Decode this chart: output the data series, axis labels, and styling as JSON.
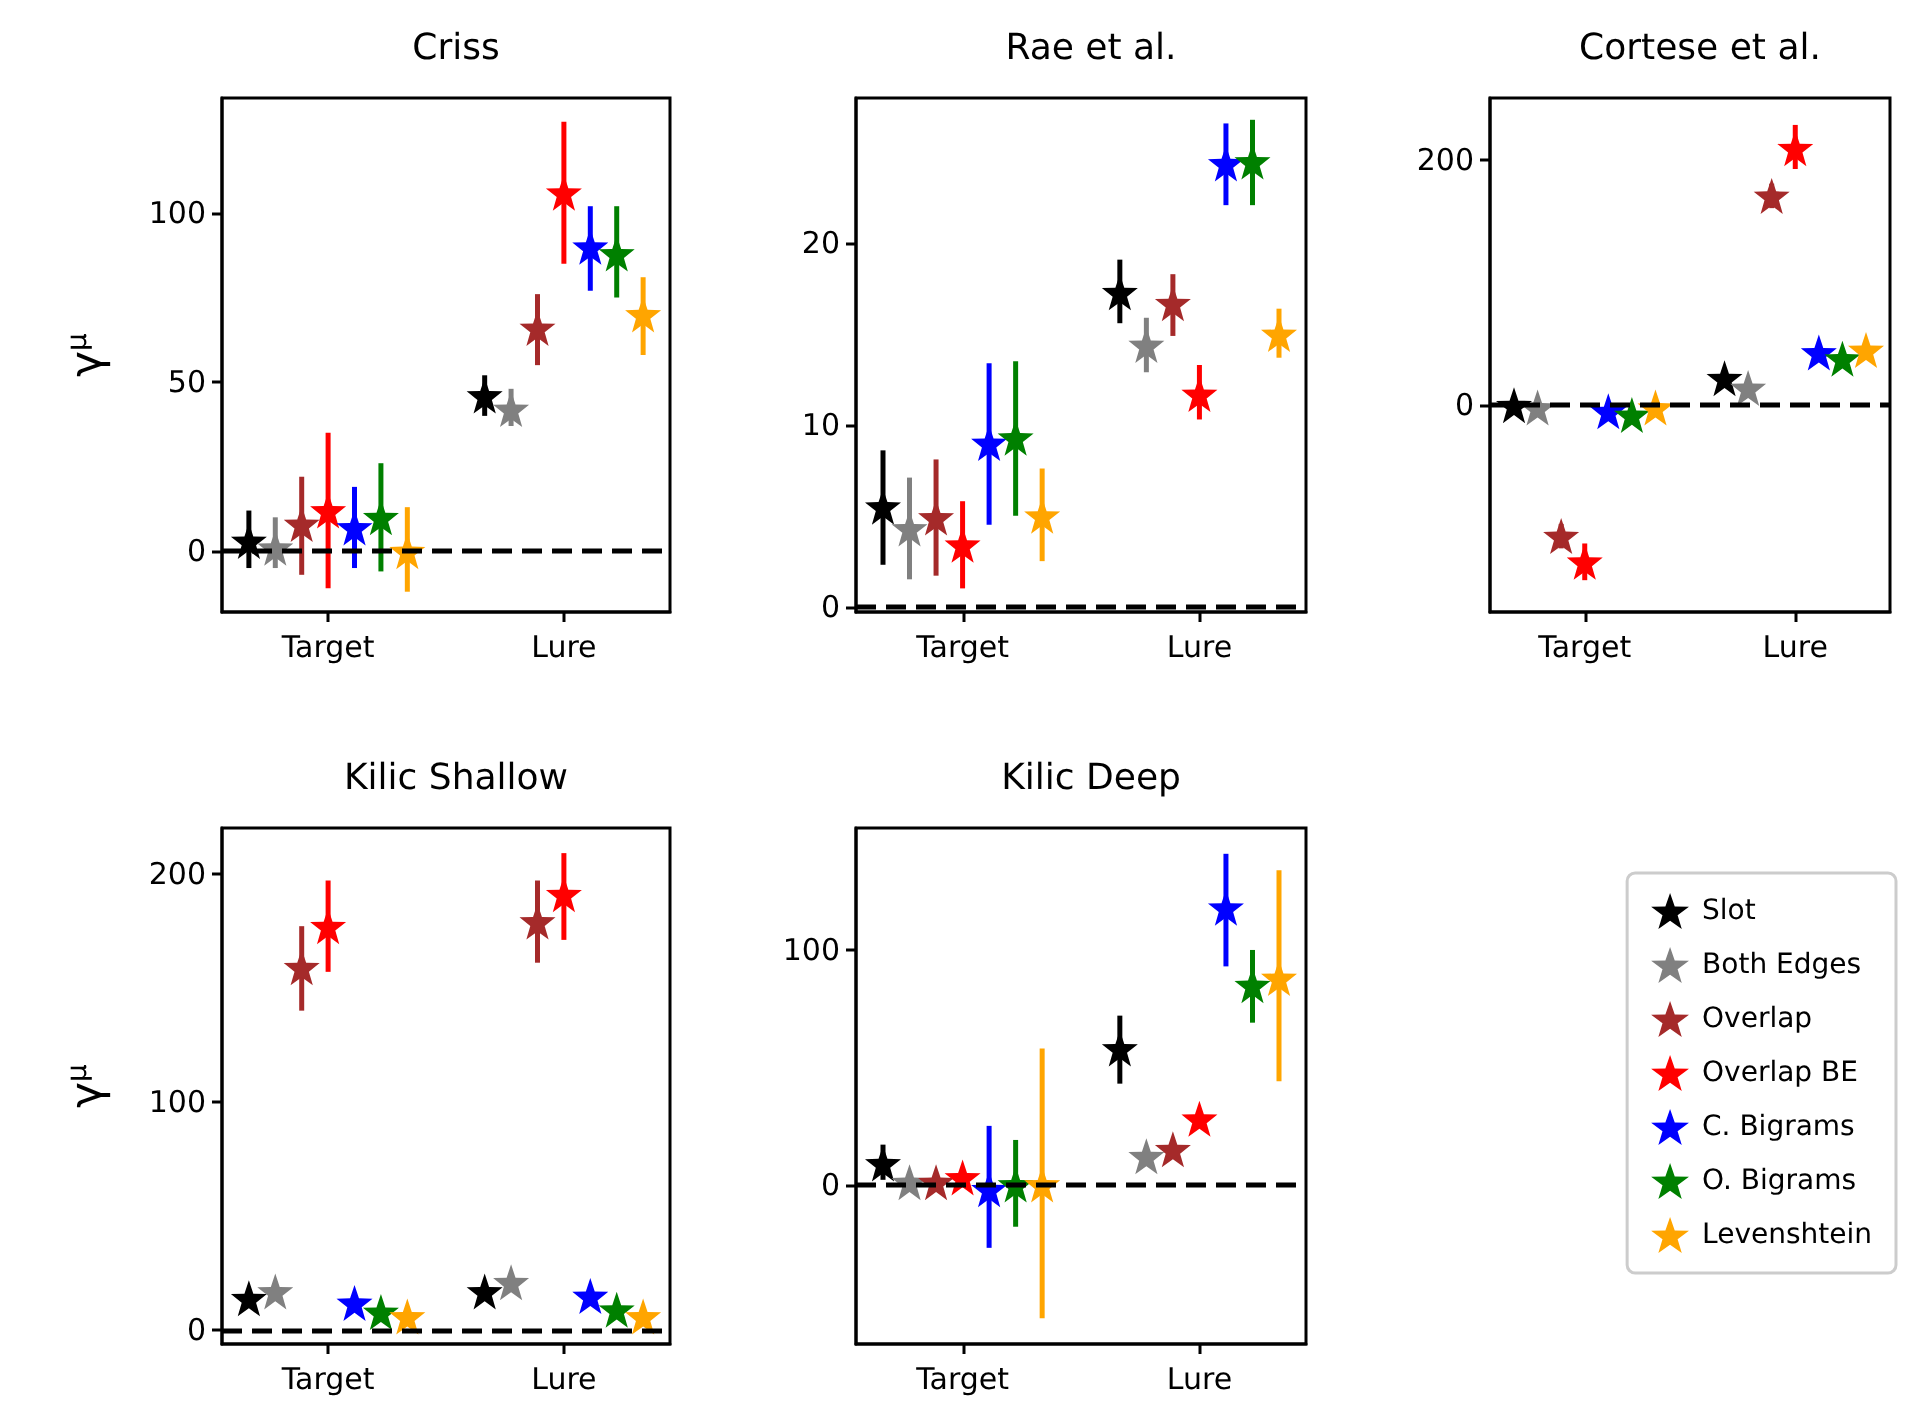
{
  "chart_data": [
    {
      "type": "scatter",
      "title": "Criss",
      "ylabel": "γ$^{μ}$",
      "categories": [
        "Target",
        "Lure"
      ],
      "ylim": [
        -18,
        134
      ],
      "yticks": [
        0,
        50,
        100
      ],
      "marker": "star",
      "legend": false,
      "ref_lines": [
        {
          "axis": "y",
          "value": 0,
          "color": "#000000",
          "line_style": "dashed"
        }
      ],
      "series": [
        {
          "color": "#000000",
          "values": [
            3,
            46
          ],
          "errors": [
            [
              -5,
              12
            ],
            [
              40,
              52
            ]
          ]
        },
        {
          "color": "#808080",
          "values": [
            1,
            42
          ],
          "errors": [
            [
              -5,
              10
            ],
            [
              37,
              48
            ]
          ]
        },
        {
          "color": "#a52a2a",
          "values": [
            8,
            66
          ],
          "errors": [
            [
              -7,
              22
            ],
            [
              55,
              76
            ]
          ]
        },
        {
          "color": "#ff0000",
          "values": [
            12,
            106
          ],
          "errors": [
            [
              -11,
              35
            ],
            [
              85,
              127
            ]
          ]
        },
        {
          "color": "#0000ff",
          "values": [
            7,
            90
          ],
          "errors": [
            [
              -5,
              19
            ],
            [
              77,
              102
            ]
          ]
        },
        {
          "color": "#008000",
          "values": [
            10,
            88
          ],
          "errors": [
            [
              -6,
              26
            ],
            [
              75,
              102
            ]
          ]
        },
        {
          "color": "#ffa500",
          "values": [
            0,
            70
          ],
          "errors": [
            [
              -12,
              13
            ],
            [
              58,
              81
            ]
          ]
        }
      ]
    },
    {
      "type": "scatter",
      "title": "Rae et al.",
      "categories": [
        "Target",
        "Lure"
      ],
      "ylim": [
        -0.3,
        28
      ],
      "yticks": [
        0,
        10,
        20
      ],
      "marker": "star",
      "legend": false,
      "ref_lines": [
        {
          "axis": "y",
          "value": 0,
          "color": "#000000",
          "line_style": "dashed"
        }
      ],
      "series": [
        {
          "color": "#000000",
          "values": [
            5.5,
            17.3
          ],
          "errors": [
            [
              2.3,
              8.6
            ],
            [
              15.6,
              19.1
            ]
          ]
        },
        {
          "color": "#808080",
          "values": [
            4.3,
            14.4
          ],
          "errors": [
            [
              1.5,
              7.1
            ],
            [
              12.9,
              15.9
            ]
          ]
        },
        {
          "color": "#a52a2a",
          "values": [
            4.9,
            16.7
          ],
          "errors": [
            [
              1.7,
              8.1
            ],
            [
              14.9,
              18.3
            ]
          ]
        },
        {
          "color": "#ff0000",
          "values": [
            3.4,
            11.7
          ],
          "errors": [
            [
              1.0,
              5.8
            ],
            [
              10.3,
              13.3
            ]
          ]
        },
        {
          "color": "#0000ff",
          "values": [
            9.0,
            24.4
          ],
          "errors": [
            [
              4.5,
              13.4
            ],
            [
              22.1,
              26.6
            ]
          ]
        },
        {
          "color": "#008000",
          "values": [
            9.3,
            24.5
          ],
          "errors": [
            [
              5.0,
              13.5
            ],
            [
              22.1,
              26.8
            ]
          ]
        },
        {
          "color": "#ffa500",
          "values": [
            5.0,
            15.0
          ],
          "errors": [
            [
              2.5,
              7.6
            ],
            [
              13.7,
              16.4
            ]
          ]
        }
      ]
    },
    {
      "type": "scatter",
      "title": "Cortese et al.",
      "categories": [
        "Target",
        "Lure"
      ],
      "ylim": [
        -169,
        251
      ],
      "yticks": [
        0,
        200
      ],
      "marker": "star",
      "legend": false,
      "ref_lines": [
        {
          "axis": "y",
          "value": 0,
          "color": "#000000",
          "line_style": "dashed"
        }
      ],
      "series": [
        {
          "color": "#000000",
          "values": [
            0,
            22
          ],
          "errors": [
            null,
            null
          ]
        },
        {
          "color": "#808080",
          "values": [
            -2,
            14
          ],
          "errors": [
            null,
            null
          ]
        },
        {
          "color": "#a52a2a",
          "values": [
            -107,
            171
          ],
          "errors": [
            [
              -117,
              -97
            ],
            [
              161,
              181
            ]
          ]
        },
        {
          "color": "#ff0000",
          "values": [
            -128,
            210
          ],
          "errors": [
            [
              -143,
              -113
            ],
            [
              193,
              229
            ]
          ]
        },
        {
          "color": "#0000ff",
          "values": [
            -5,
            43
          ],
          "errors": [
            null,
            null
          ]
        },
        {
          "color": "#008000",
          "values": [
            -8,
            38
          ],
          "errors": [
            null,
            null
          ]
        },
        {
          "color": "#ffa500",
          "values": [
            -2,
            45
          ],
          "errors": [
            null,
            null
          ]
        }
      ]
    },
    {
      "type": "scatter",
      "title": "Kilic Shallow",
      "ylabel": "γ$^{μ}$",
      "categories": [
        "Target",
        "Lure"
      ],
      "ylim": [
        -6,
        220
      ],
      "yticks": [
        0,
        100,
        200
      ],
      "marker": "star",
      "legend": false,
      "ref_lines": [
        {
          "axis": "y",
          "value": 0,
          "color": "#000000",
          "line_style": "dashed"
        }
      ],
      "series": [
        {
          "color": "#000000",
          "values": [
            14,
            17
          ],
          "errors": [
            null,
            null
          ]
        },
        {
          "color": "#808080",
          "values": [
            17,
            21
          ],
          "errors": [
            null,
            null
          ]
        },
        {
          "color": "#a52a2a",
          "values": [
            159,
            179
          ],
          "errors": [
            [
              140,
              177
            ],
            [
              161,
              197
            ]
          ]
        },
        {
          "color": "#ff0000",
          "values": [
            177,
            191
          ],
          "errors": [
            [
              157,
              197
            ],
            [
              171,
              209
            ]
          ]
        },
        {
          "color": "#0000ff",
          "values": [
            12,
            15
          ],
          "errors": [
            null,
            null
          ]
        },
        {
          "color": "#008000",
          "values": [
            8,
            9
          ],
          "errors": [
            null,
            null
          ]
        },
        {
          "color": "#ffa500",
          "values": [
            6,
            6
          ],
          "errors": [
            null,
            null
          ]
        }
      ]
    },
    {
      "type": "scatter",
      "title": "Kilic Deep",
      "categories": [
        "Target",
        "Lure"
      ],
      "ylim": [
        -68,
        152
      ],
      "yticks": [
        0,
        100
      ],
      "marker": "star",
      "legend": "right",
      "ref_lines": [
        {
          "axis": "y",
          "value": 0,
          "color": "#000000",
          "line_style": "dashed"
        }
      ],
      "series": [
        {
          "name": "Slot",
          "color": "#000000",
          "values": [
            9,
            58
          ],
          "errors": [
            [
              2,
              17
            ],
            [
              43,
              72
            ]
          ]
        },
        {
          "name": "Both Edges",
          "color": "#808080",
          "values": [
            1,
            12
          ],
          "errors": [
            null,
            null
          ]
        },
        {
          "name": "Overlap",
          "color": "#a52a2a",
          "values": [
            1,
            15
          ],
          "errors": [
            null,
            null
          ]
        },
        {
          "name": "Overlap BE",
          "color": "#ff0000",
          "values": [
            3,
            28
          ],
          "errors": [
            null,
            null
          ]
        },
        {
          "name": "C. Bigrams",
          "color": "#0000ff",
          "values": [
            -2,
            118
          ],
          "errors": [
            [
              -27,
              25
            ],
            [
              93,
              141
            ]
          ]
        },
        {
          "name": "O. Bigrams",
          "color": "#008000",
          "values": [
            0,
            85
          ],
          "errors": [
            [
              -18,
              19
            ],
            [
              69,
              100
            ]
          ]
        },
        {
          "name": "Levenshtein",
          "color": "#ffa500",
          "values": [
            0,
            88
          ],
          "errors": [
            [
              -57,
              58
            ],
            [
              44,
              134
            ]
          ]
        }
      ]
    }
  ]
}
